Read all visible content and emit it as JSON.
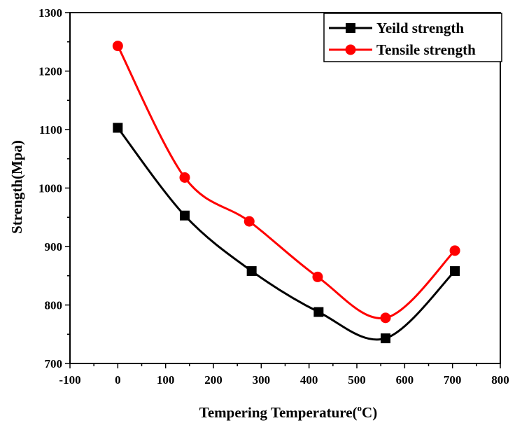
{
  "chart_data": {
    "type": "line",
    "xlabel": "Tempering Temperature(",
    "xlabel_sup": "o",
    "xlabel_end": "C)",
    "ylabel": "Strength(Mpa)",
    "xlim": [
      -100,
      800
    ],
    "ylim": [
      700,
      1300
    ],
    "xticks": [
      -100,
      0,
      100,
      200,
      300,
      400,
      500,
      600,
      700,
      800
    ],
    "yticks": [
      700,
      800,
      900,
      1000,
      1100,
      1200,
      1300
    ],
    "grid": false,
    "legend_position": "top-right",
    "smooth": true,
    "series": [
      {
        "name": "Yeild strength",
        "color": "#000000",
        "marker": "square",
        "x": [
          0,
          140,
          280,
          420,
          560,
          705
        ],
        "y": [
          1103,
          953,
          858,
          788,
          743,
          858
        ]
      },
      {
        "name": "Tensile strength",
        "color": "#ff0000",
        "marker": "circle",
        "x": [
          0,
          140,
          275,
          418,
          560,
          705
        ],
        "y": [
          1243,
          1018,
          943,
          848,
          778,
          893
        ]
      }
    ]
  }
}
